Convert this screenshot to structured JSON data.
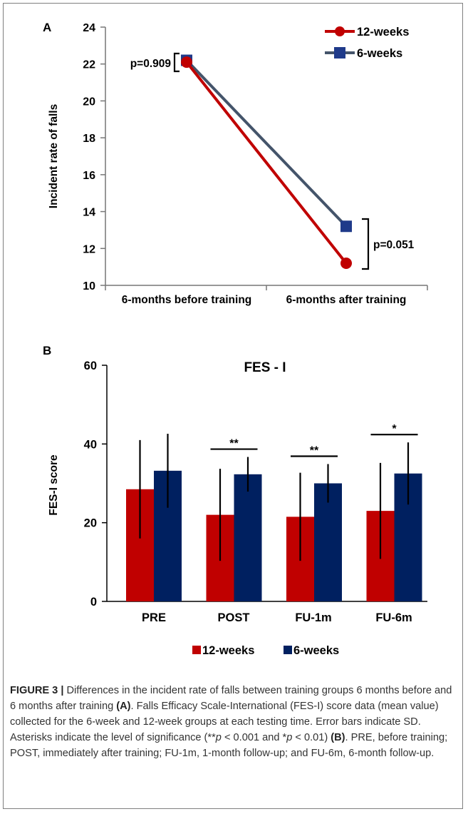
{
  "chart_data": [
    {
      "type": "line",
      "panel": "A",
      "title": "",
      "xlabel": "",
      "ylabel": "Incident rate of falls",
      "ylim": [
        10,
        24
      ],
      "yticks": [
        10,
        12,
        14,
        16,
        18,
        20,
        22,
        24
      ],
      "categories": [
        "6-months before training",
        "6-months after training"
      ],
      "series": [
        {
          "name": "12-weeks",
          "color": "#c00000",
          "marker": "circle",
          "values": [
            22.1,
            11.2
          ]
        },
        {
          "name": "6-weeks",
          "color": "#44546a",
          "marker": "square",
          "values": [
            22.2,
            13.2
          ]
        }
      ],
      "annotations": [
        {
          "label": "p=0.909",
          "category_index": 0
        },
        {
          "label": "p=0.051",
          "category_index": 1
        }
      ],
      "grid": false,
      "legend": "top-right"
    },
    {
      "type": "bar",
      "panel": "B",
      "title": "FES - I",
      "xlabel": "",
      "ylabel": "FES-I score",
      "ylim": [
        0,
        60
      ],
      "yticks": [
        0,
        20,
        40,
        60
      ],
      "categories": [
        "PRE",
        "POST",
        "FU-1m",
        "FU-6m"
      ],
      "series": [
        {
          "name": "12-weeks",
          "color": "#c00000",
          "values": [
            28.5,
            22.0,
            21.5,
            23.0
          ],
          "sd": [
            12.5,
            11.7,
            11.2,
            12.2
          ]
        },
        {
          "name": "6-weeks",
          "color": "#002060",
          "values": [
            33.2,
            32.3,
            30.0,
            32.5
          ],
          "sd": [
            9.4,
            4.4,
            4.9,
            7.9
          ]
        }
      ],
      "significance": [
        {
          "category_index": 1,
          "label": "**"
        },
        {
          "category_index": 2,
          "label": "**"
        },
        {
          "category_index": 3,
          "label": "*"
        }
      ],
      "grid": false,
      "legend": "bottom"
    }
  ],
  "panel_labels": [
    "A",
    "B"
  ],
  "caption": {
    "title": "FIGURE 3 |",
    "text": " Differences in the incident rate of falls between training groups 6 months before and 6 months after training ",
    "ref_a": "(A)",
    "text2": ". Falls Efficacy Scale-International (FES-I) score data (mean value) collected for the 6-week and 12-week groups at each testing time. Error bars indicate SD. Asterisks indicate the level of significance (**",
    "p1": "p",
    "text3": " < 0.001 and *",
    "p2": "p",
    "text4": " < 0.01) ",
    "ref_b": "(B)",
    "text5": ". PRE, before training; POST, immediately after training; FU-1m, 1-month follow-up; and FU-6m, 6-month follow-up."
  }
}
